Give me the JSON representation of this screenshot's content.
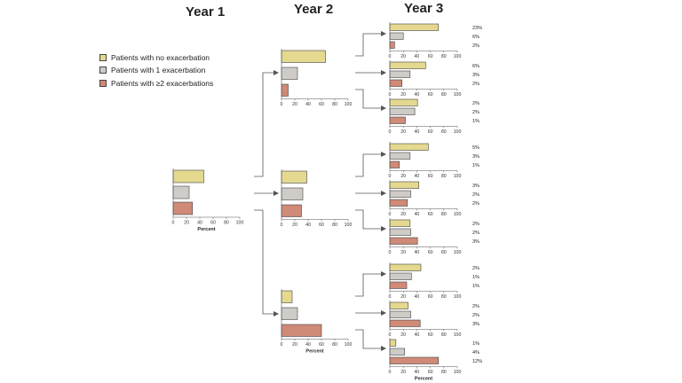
{
  "titles": {
    "year1": "Year 1",
    "year2": "Year 2",
    "year3": "Year 3"
  },
  "legend": {
    "no_exac": "Patients with no exacerbation",
    "one_exac": "Patients with 1 exacerbation",
    "two_plus": "Patients with ≥2 exacerbations"
  },
  "colors": {
    "no_exac": "#e4d98f",
    "one_exac": "#cfccc8",
    "two_plus": "#d08a78",
    "stroke": "#444444"
  },
  "chart_data": [
    {
      "type": "bar",
      "panel": "year1",
      "orientation": "horizontal",
      "series": [
        {
          "name": "Patients with no exacerbation",
          "value": 46
        },
        {
          "name": "Patients with 1 exacerbation",
          "value": 24
        },
        {
          "name": "Patients with ≥2 exacerbations",
          "value": 29
        }
      ],
      "xlim": [
        0,
        100
      ],
      "ticks": [
        "0",
        "20",
        "40",
        "60",
        "80",
        "100"
      ],
      "xlabel": "Percent"
    },
    {
      "type": "bar",
      "panel": "year2-from-no-exacerbation",
      "orientation": "horizontal",
      "series": [
        {
          "name": "Patients with no exacerbation",
          "value": 66
        },
        {
          "name": "Patients with 1 exacerbation",
          "value": 24
        },
        {
          "name": "Patients with ≥2 exacerbations",
          "value": 10
        }
      ],
      "xlim": [
        0,
        100
      ],
      "ticks": [
        "0",
        "20",
        "40",
        "60",
        "80",
        "100"
      ],
      "xlabel": ""
    },
    {
      "type": "bar",
      "panel": "year2-from-1-exacerbation",
      "orientation": "horizontal",
      "series": [
        {
          "name": "Patients with no exacerbation",
          "value": 38
        },
        {
          "name": "Patients with 1 exacerbation",
          "value": 32
        },
        {
          "name": "Patients with ≥2 exacerbations",
          "value": 30
        }
      ],
      "xlim": [
        0,
        100
      ],
      "ticks": [
        "0",
        "20",
        "40",
        "60",
        "80",
        "100"
      ],
      "xlabel": ""
    },
    {
      "type": "bar",
      "panel": "year2-from-2plus-exacerbations",
      "orientation": "horizontal",
      "series": [
        {
          "name": "Patients with no exacerbation",
          "value": 16
        },
        {
          "name": "Patients with 1 exacerbation",
          "value": 24
        },
        {
          "name": "Patients with ≥2 exacerbations",
          "value": 60
        }
      ],
      "xlim": [
        0,
        100
      ],
      "ticks": [
        "0",
        "20",
        "40",
        "60",
        "80",
        "100"
      ],
      "xlabel": "Percent"
    },
    {
      "type": "bar",
      "panel": "year3-1",
      "orientation": "horizontal",
      "series": [
        {
          "name": "Patients with no exacerbation",
          "value": 72,
          "label": "23%"
        },
        {
          "name": "Patients with 1 exacerbation",
          "value": 20,
          "label": "6%"
        },
        {
          "name": "Patients with ≥2 exacerbations",
          "value": 7,
          "label": "2%"
        }
      ],
      "xlim": [
        0,
        100
      ],
      "ticks": [
        "0",
        "20",
        "40",
        "60",
        "80",
        "100"
      ],
      "xlabel": ""
    },
    {
      "type": "bar",
      "panel": "year3-2",
      "orientation": "horizontal",
      "series": [
        {
          "name": "Patients with no exacerbation",
          "value": 53,
          "label": "6%"
        },
        {
          "name": "Patients with 1 exacerbation",
          "value": 30,
          "label": "3%"
        },
        {
          "name": "Patients with ≥2 exacerbations",
          "value": 18,
          "label": "2%"
        }
      ],
      "xlim": [
        0,
        100
      ],
      "ticks": [
        "0",
        "20",
        "40",
        "60",
        "80",
        "100"
      ],
      "xlabel": ""
    },
    {
      "type": "bar",
      "panel": "year3-3",
      "orientation": "horizontal",
      "series": [
        {
          "name": "Patients with no exacerbation",
          "value": 41,
          "label": "2%"
        },
        {
          "name": "Patients with 1 exacerbation",
          "value": 37,
          "label": "2%"
        },
        {
          "name": "Patients with ≥2 exacerbations",
          "value": 23,
          "label": "1%"
        }
      ],
      "xlim": [
        0,
        100
      ],
      "ticks": [
        "0",
        "20",
        "40",
        "60",
        "80",
        "100"
      ],
      "xlabel": ""
    },
    {
      "type": "bar",
      "panel": "year3-4",
      "orientation": "horizontal",
      "series": [
        {
          "name": "Patients with no exacerbation",
          "value": 57,
          "label": "5%"
        },
        {
          "name": "Patients with 1 exacerbation",
          "value": 30,
          "label": "3%"
        },
        {
          "name": "Patients with ≥2 exacerbations",
          "value": 14,
          "label": "1%"
        }
      ],
      "xlim": [
        0,
        100
      ],
      "ticks": [
        "0",
        "20",
        "40",
        "60",
        "80",
        "100"
      ],
      "xlabel": ""
    },
    {
      "type": "bar",
      "panel": "year3-5",
      "orientation": "horizontal",
      "series": [
        {
          "name": "Patients with no exacerbation",
          "value": 43,
          "label": "3%"
        },
        {
          "name": "Patients with 1 exacerbation",
          "value": 31,
          "label": "2%"
        },
        {
          "name": "Patients with ≥2 exacerbations",
          "value": 26,
          "label": "2%"
        }
      ],
      "xlim": [
        0,
        100
      ],
      "ticks": [
        "0",
        "20",
        "40",
        "60",
        "80",
        "100"
      ],
      "xlabel": ""
    },
    {
      "type": "bar",
      "panel": "year3-6",
      "orientation": "horizontal",
      "series": [
        {
          "name": "Patients with no exacerbation",
          "value": 30,
          "label": "2%"
        },
        {
          "name": "Patients with 1 exacerbation",
          "value": 31,
          "label": "2%"
        },
        {
          "name": "Patients with ≥2 exacerbations",
          "value": 41,
          "label": "3%"
        }
      ],
      "xlim": [
        0,
        100
      ],
      "ticks": [
        "0",
        "20",
        "40",
        "60",
        "80",
        "100"
      ],
      "xlabel": ""
    },
    {
      "type": "bar",
      "panel": "year3-7",
      "orientation": "horizontal",
      "series": [
        {
          "name": "Patients with no exacerbation",
          "value": 46,
          "label": "2%"
        },
        {
          "name": "Patients with 1 exacerbation",
          "value": 32,
          "label": "1%"
        },
        {
          "name": "Patients with ≥2 exacerbations",
          "value": 25,
          "label": "1%"
        }
      ],
      "xlim": [
        0,
        100
      ],
      "ticks": [
        "0",
        "20",
        "40",
        "60",
        "80",
        "100"
      ],
      "xlabel": ""
    },
    {
      "type": "bar",
      "panel": "year3-8",
      "orientation": "horizontal",
      "series": [
        {
          "name": "Patients with no exacerbation",
          "value": 27,
          "label": "2%"
        },
        {
          "name": "Patients with 1 exacerbation",
          "value": 31,
          "label": "2%"
        },
        {
          "name": "Patients with ≥2 exacerbations",
          "value": 45,
          "label": "3%"
        }
      ],
      "xlim": [
        0,
        100
      ],
      "ticks": [
        "0",
        "20",
        "40",
        "60",
        "80",
        "100"
      ],
      "xlabel": ""
    },
    {
      "type": "bar",
      "panel": "year3-9",
      "orientation": "horizontal",
      "series": [
        {
          "name": "Patients with no exacerbation",
          "value": 9,
          "label": "1%"
        },
        {
          "name": "Patients with 1 exacerbation",
          "value": 22,
          "label": "4%"
        },
        {
          "name": "Patients with ≥2 exacerbations",
          "value": 72,
          "label": "12%"
        }
      ],
      "xlim": [
        0,
        100
      ],
      "ticks": [
        "0",
        "20",
        "40",
        "60",
        "80",
        "100"
      ],
      "xlabel": "Percent"
    }
  ]
}
